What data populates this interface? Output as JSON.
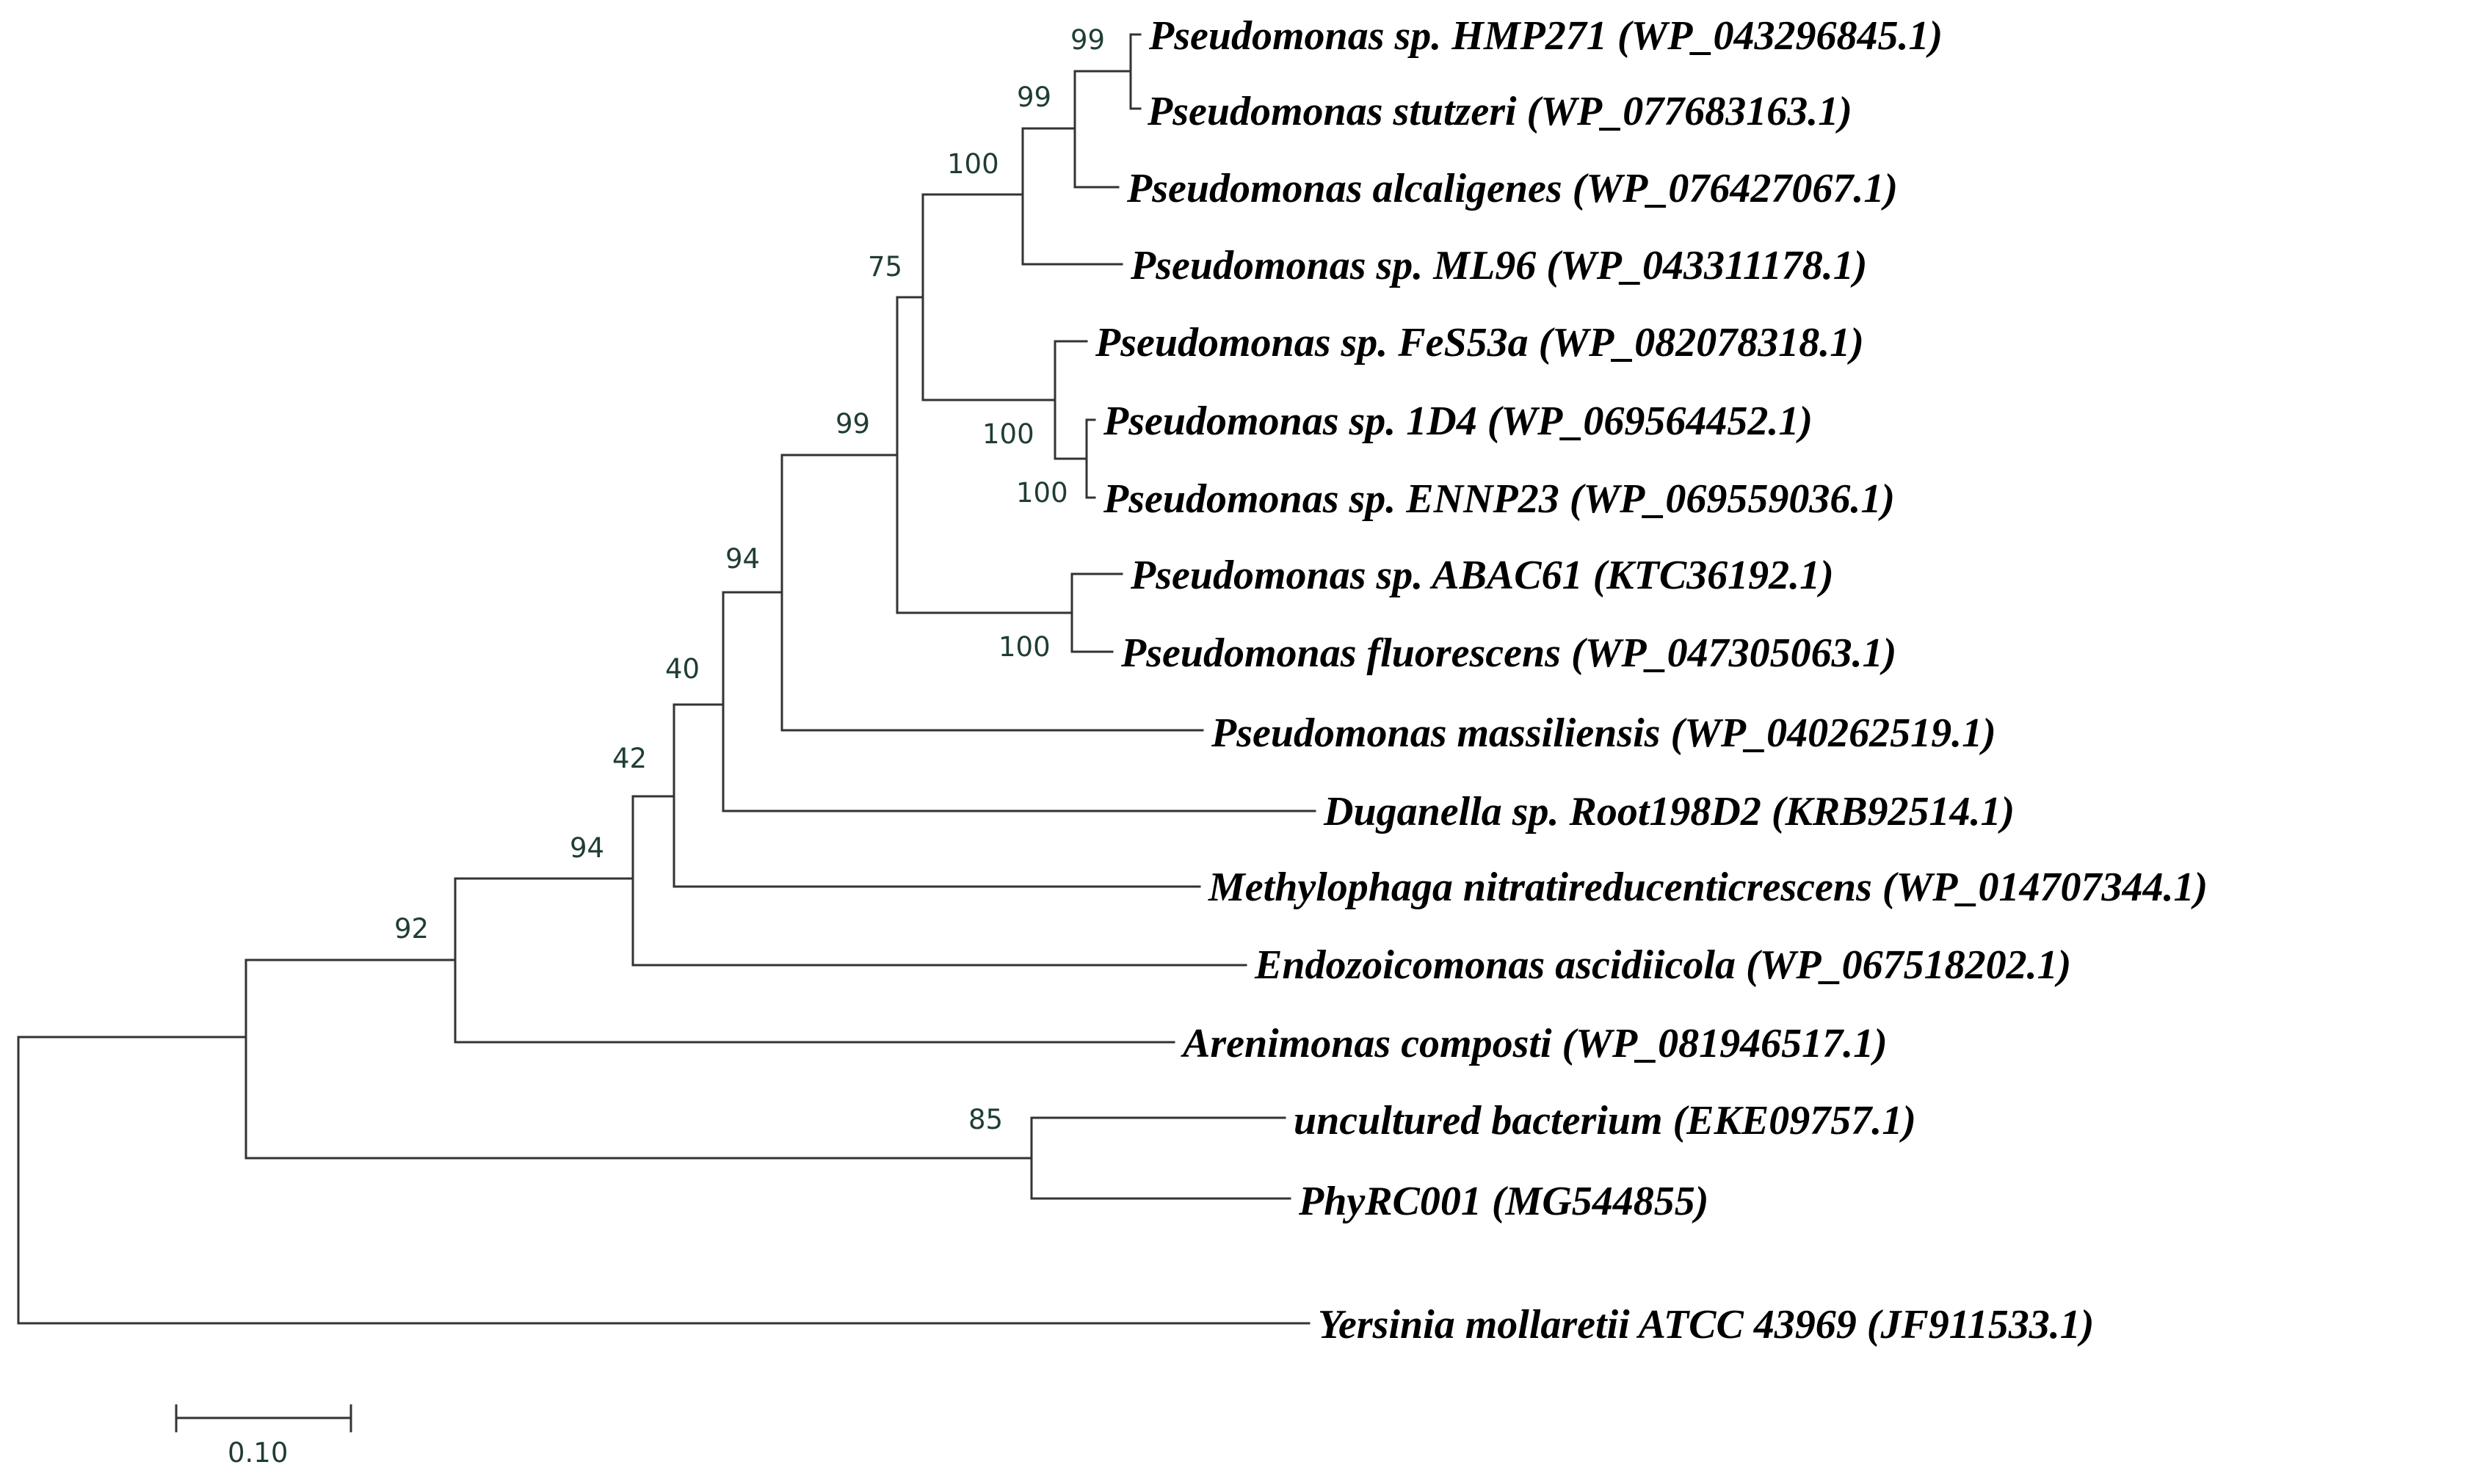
{
  "taxa": [
    {
      "id": "t1",
      "label": "Pseudomonas sp. HMP271 (WP_043296845.1)"
    },
    {
      "id": "t2",
      "label": "Pseudomonas stutzeri  (WP_077683163.1)"
    },
    {
      "id": "t3",
      "label": "Pseudomonas alcaligenes  (WP_076427067.1)"
    },
    {
      "id": "t4",
      "label": "Pseudomonas sp. ML96 (WP_043311178.1)"
    },
    {
      "id": "t5",
      "label": "Pseudomonas sp. FeS53a (WP_082078318.1)"
    },
    {
      "id": "t6",
      "label": "Pseudomonas sp. 1D4 (WP_069564452.1)"
    },
    {
      "id": "t7",
      "label": "Pseudomonas sp. ENNP23 (WP_069559036.1)"
    },
    {
      "id": "t8",
      "label": "Pseudomonas sp. ABAC61 (KTC36192.1)"
    },
    {
      "id": "t9",
      "label": "Pseudomonas fluorescens  (WP_047305063.1)"
    },
    {
      "id": "t10",
      "label": "Pseudomonas massiliensis  (WP_040262519.1)"
    },
    {
      "id": "t11",
      "label": "Duganella sp. Root198D2 (KRB92514.1)"
    },
    {
      "id": "t12",
      "label": "Methylophaga nitratireducenticrescens  (WP_014707344.1)"
    },
    {
      "id": "t13",
      "label": "Endozoicomonas ascidiicola  (WP_067518202.1)"
    },
    {
      "id": "t14",
      "label": "Arenimonas composti (WP_081946517.1)"
    },
    {
      "id": "t15",
      "label": "uncultured bacterium  (EKE09757.1)"
    },
    {
      "id": "t16",
      "label": "PhyRC001 (MG544855)"
    },
    {
      "id": "t17",
      "label": "Yersinia mollaretii ATCC 43969 (JF911533.1)"
    }
  ],
  "support_values": {
    "n_hmp_stutzeri": "99",
    "n_alcaligenes": "99",
    "n_ml96": "100",
    "n_stutzeri_group": "75",
    "n_1d4_ennp23": "100",
    "n_fes53a": "100",
    "n_fluorescens": "100",
    "n_pseudomonas": "99",
    "n_massiliensis": "94",
    "n_duganella": "40",
    "n_methylophaga": "42",
    "n_endozoicomonas": "94",
    "n_arenimonas": "92",
    "n_phyrc": "85"
  },
  "scale_bar": {
    "label": "0.10"
  }
}
